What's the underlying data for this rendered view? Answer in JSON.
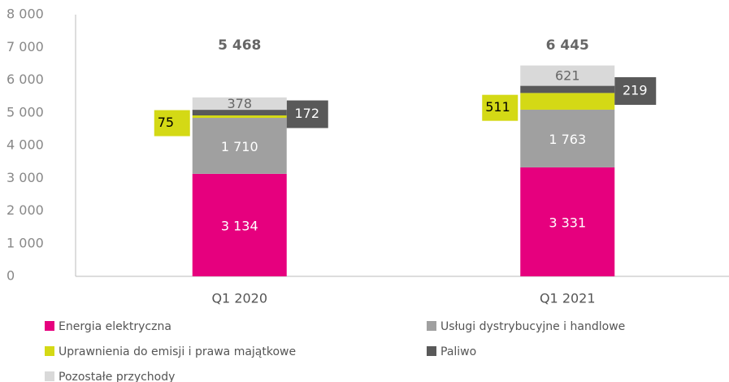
{
  "chart_data": {
    "type": "stacked_bar",
    "categories": [
      "Q1 2020",
      "Q1 2021"
    ],
    "series": [
      {
        "name": "Energia elektryczna",
        "color": "#e6007e",
        "values": [
          3134,
          3331
        ],
        "value_labels": [
          "3 134",
          "3 331"
        ]
      },
      {
        "name": "Usługi dystrybucyjne i handlowe",
        "color": "#a0a0a0",
        "values": [
          1710,
          1763
        ],
        "value_labels": [
          "1 710",
          "1 763"
        ]
      },
      {
        "name": "Uprawnienia do emisji i prawa majątkowe",
        "color": "#d4d915",
        "values": [
          75,
          511
        ]
      },
      {
        "name": "Paliwo",
        "color": "#595959",
        "values": [
          172,
          219
        ]
      },
      {
        "name": "Pozostałe przychody",
        "color": "#d9d9d9",
        "values": [
          378,
          621
        ]
      }
    ],
    "totals": [
      5468,
      6445
    ],
    "total_labels": [
      "5 468",
      "6 445"
    ],
    "ylim": [
      0,
      8000
    ],
    "yticks": [
      0,
      {
        "value": 1000,
        "label": "1 000"
      },
      {
        "value": 2000,
        "label": "2 000"
      },
      {
        "value": 3000,
        "label": "3 000"
      },
      {
        "value": 4000,
        "label": "4 000"
      },
      {
        "value": 5000,
        "label": "5 000"
      },
      {
        "value": 6000,
        "label": "6 000"
      },
      {
        "value": 7000,
        "label": "7 000"
      },
      {
        "value": 8000,
        "label": "8 000"
      }
    ],
    "grid": false,
    "legend": "bottom"
  }
}
